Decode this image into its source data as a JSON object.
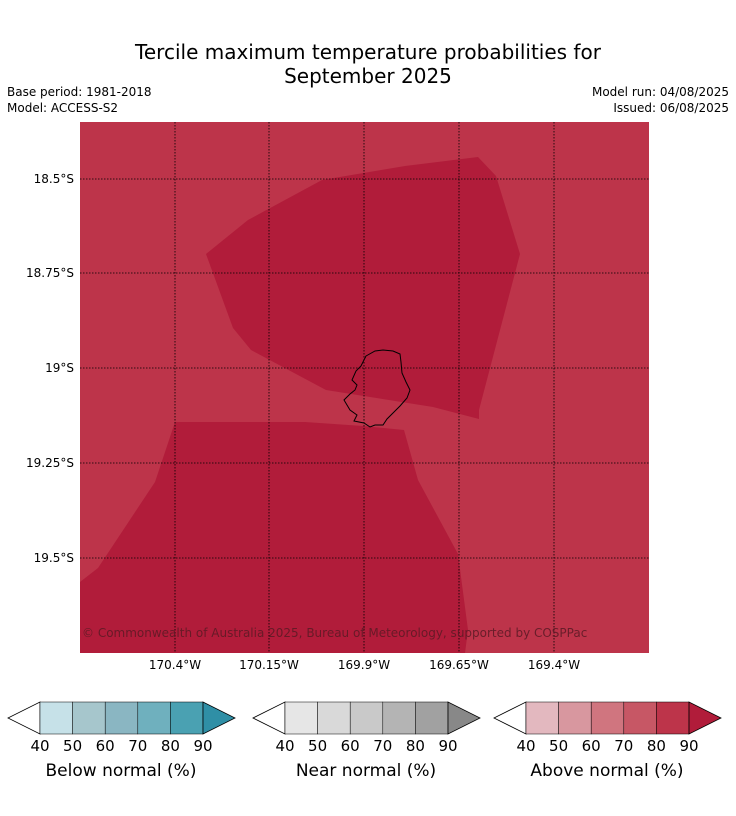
{
  "title": {
    "line1": "Tercile maximum temperature probabilities for",
    "line2": "September 2025"
  },
  "info": {
    "base_period": "Base period: 1981-2018",
    "model": "Model: ACCESS-S2",
    "model_run": "Model run: 04/08/2025",
    "issued": "Issued: 06/08/2025"
  },
  "map": {
    "lat_labels": [
      "18.5°S",
      "18.75°S",
      "19°S",
      "19.25°S",
      "19.5°S"
    ],
    "lon_labels": [
      "170.4°W",
      "170.15°W",
      "169.9°W",
      "169.65°W",
      "169.4°W"
    ],
    "copyright": "© Commonwealth of Australia 2025, Bureau of Meteorology, supported by COSPPac",
    "regions": [
      {
        "category": "Above normal",
        "range": "80-90"
      },
      {
        "category": "Above normal",
        "range": "90+"
      }
    ],
    "colors": {
      "above_80_90": "#bd344a",
      "above_90_plus": "#b11c3a",
      "coastline": "#000000"
    }
  },
  "colorbars": [
    {
      "label": "Below normal (%)",
      "ticks": [
        "40",
        "50",
        "60",
        "70",
        "80",
        "90"
      ],
      "colors": [
        "#ffffff",
        "#c6e1e8",
        "#a6c6cc",
        "#8ab6c2",
        "#6fb0be",
        "#4aa1b2",
        "#2f8fa6"
      ]
    },
    {
      "label": "Near normal (%)",
      "ticks": [
        "40",
        "50",
        "60",
        "70",
        "80",
        "90"
      ],
      "colors": [
        "#ffffff",
        "#e6e6e6",
        "#d9d9d9",
        "#c9c9c9",
        "#b4b4b4",
        "#a1a1a1",
        "#888888"
      ]
    },
    {
      "label": "Above normal (%)",
      "ticks": [
        "40",
        "50",
        "60",
        "70",
        "80",
        "90"
      ],
      "colors": [
        "#ffffff",
        "#e3b8bf",
        "#d8979f",
        "#d0757f",
        "#c75765",
        "#bd344a",
        "#b11c3a"
      ]
    }
  ]
}
